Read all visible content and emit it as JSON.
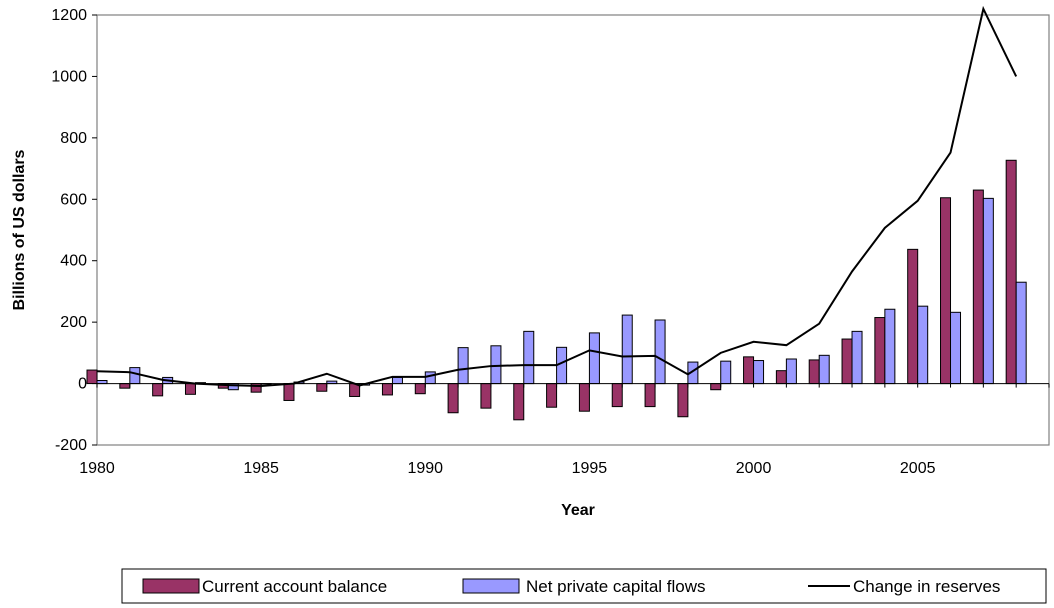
{
  "chart_data": {
    "type": "bar",
    "xlabel": "Year",
    "ylabel": "Billions of US dollars",
    "ylim": [
      -200,
      1200
    ],
    "yticks": [
      -200,
      0,
      200,
      400,
      600,
      800,
      1000,
      1200
    ],
    "xlim": [
      1980,
      2009
    ],
    "xticks": [
      1980,
      1985,
      1990,
      1995,
      2000,
      2005
    ],
    "grid": false,
    "legend": "bottom",
    "x": [
      1980,
      1981,
      1982,
      1983,
      1984,
      1985,
      1986,
      1987,
      1988,
      1989,
      1990,
      1991,
      1992,
      1993,
      1994,
      1995,
      1996,
      1997,
      1998,
      1999,
      2000,
      2001,
      2002,
      2003,
      2004,
      2005,
      2006,
      2007,
      2008
    ],
    "series": [
      {
        "name": "Current account balance",
        "type": "bar",
        "color": "#993366",
        "values": [
          44,
          -15,
          -40,
          -35,
          -15,
          -28,
          -55,
          -25,
          -42,
          -37,
          -33,
          -95,
          -80,
          -118,
          -77,
          -90,
          -75,
          -75,
          -108,
          -20,
          87,
          42,
          77,
          145,
          215,
          437,
          605,
          630,
          727
        ]
      },
      {
        "name": "Net private capital flows",
        "type": "bar",
        "color": "#9999ff",
        "values": [
          10,
          52,
          20,
          3,
          -20,
          0,
          5,
          8,
          -5,
          20,
          38,
          117,
          123,
          170,
          118,
          165,
          223,
          207,
          70,
          73,
          75,
          80,
          92,
          170,
          242,
          252,
          232,
          603,
          330
        ]
      },
      {
        "name": "Change in reserves",
        "type": "line",
        "color": "#000000",
        "values": [
          40,
          37,
          12,
          0,
          -5,
          -8,
          0,
          32,
          -6,
          22,
          22,
          45,
          57,
          60,
          60,
          108,
          88,
          90,
          30,
          100,
          136,
          125,
          195,
          365,
          507,
          595,
          752,
          1220,
          1000
        ]
      }
    ]
  }
}
